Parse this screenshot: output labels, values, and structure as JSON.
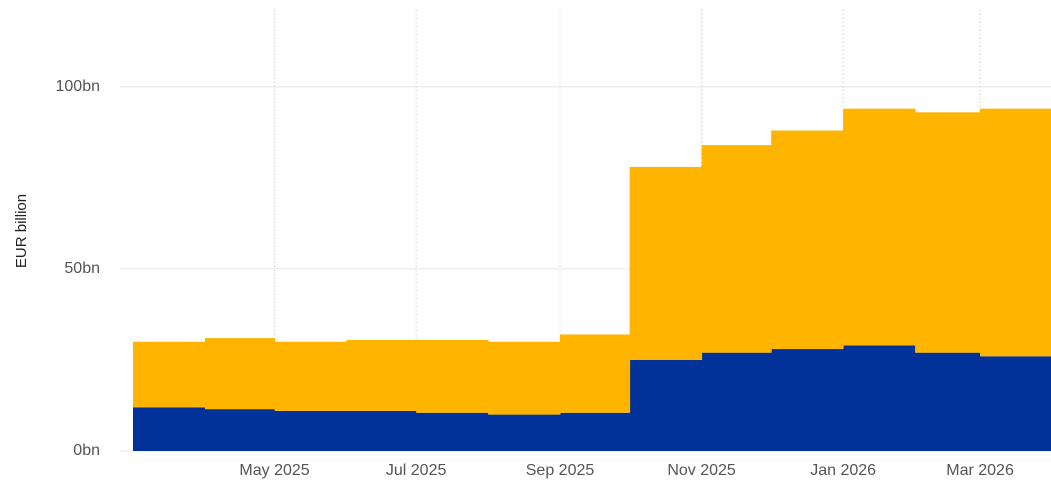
{
  "chart_data": {
    "type": "area",
    "stacked": true,
    "y_label": "EUR billion",
    "x": [
      "2025-03",
      "2025-04",
      "2025-05",
      "2025-06",
      "2025-07",
      "2025-08",
      "2025-09",
      "2025-10",
      "2025-11",
      "2025-12",
      "2026-01",
      "2026-02",
      "2026-03"
    ],
    "series": [
      {
        "color": "#003299",
        "values": [
          12,
          11.5,
          11,
          11,
          10.5,
          10,
          10.5,
          25,
          27,
          28,
          29,
          27,
          26
        ]
      },
      {
        "color": "#ffb400",
        "values": [
          18,
          19.5,
          19,
          19.5,
          20,
          20,
          21.5,
          53,
          57,
          60,
          65,
          66,
          68
        ]
      }
    ],
    "xlim": [
      "2025-03",
      "2026-04"
    ],
    "xticks": [
      {
        "value": "2025-05",
        "label": "May 2025"
      },
      {
        "value": "2025-07",
        "label": "Jul 2025"
      },
      {
        "value": "2025-09",
        "label": "Sep 2025"
      },
      {
        "value": "2025-11",
        "label": "Nov 2025"
      },
      {
        "value": "2026-01",
        "label": "Jan 2026"
      },
      {
        "value": "2026-03",
        "label": "Mar 2026"
      }
    ],
    "ylim": [
      0,
      120
    ],
    "yticks": [
      {
        "value": 0,
        "label": "0bn"
      },
      {
        "value": 50,
        "label": "50bn"
      },
      {
        "value": 100,
        "label": "100bn"
      }
    ],
    "grid": true
  }
}
